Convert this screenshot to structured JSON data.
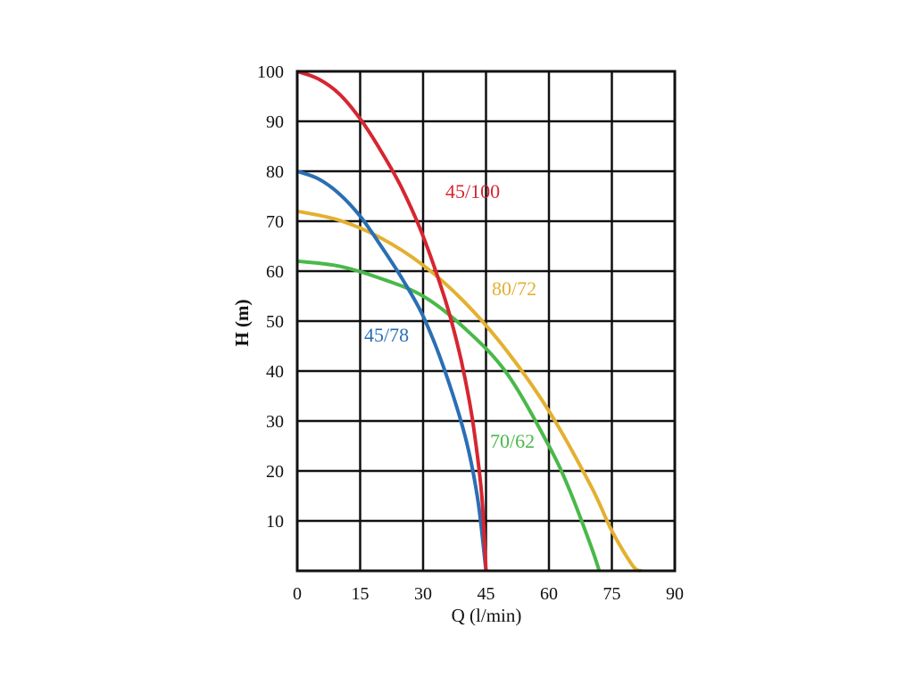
{
  "chart_data": {
    "type": "line",
    "xlabel": "Q (l/min)",
    "ylabel": "H (m)",
    "xlim": [
      0,
      90
    ],
    "ylim": [
      0,
      100
    ],
    "x_ticks": [
      "0",
      "15",
      "30",
      "45",
      "60",
      "75",
      "90"
    ],
    "y_ticks": [
      "10",
      "20",
      "30",
      "40",
      "50",
      "60",
      "70",
      "80",
      "90",
      "100"
    ],
    "grid": true,
    "series": [
      {
        "name": "45/100",
        "color": "#d62630",
        "x": [
          0,
          5,
          10,
          15,
          20,
          25,
          30,
          35,
          38,
          40,
          42,
          44,
          45
        ],
        "y": [
          100,
          98.5,
          95.5,
          90.5,
          84,
          76.5,
          67,
          55,
          46,
          38.5,
          29,
          15,
          0
        ]
      },
      {
        "name": "45/78",
        "color": "#2a6fb4",
        "x": [
          0,
          5,
          10,
          15,
          20,
          25,
          30,
          35,
          40,
          43,
          45
        ],
        "y": [
          80,
          78.5,
          75.5,
          71,
          65,
          58.5,
          51,
          40.5,
          27,
          14.5,
          0
        ]
      },
      {
        "name": "80/72",
        "color": "#e3b030",
        "x": [
          0,
          10,
          20,
          30,
          40,
          50,
          60,
          70,
          75,
          80,
          82
        ],
        "y": [
          72,
          70.2,
          66.6,
          61.2,
          53.7,
          44,
          32,
          17,
          8,
          1,
          0
        ]
      },
      {
        "name": "70/62",
        "color": "#4ab84a",
        "x": [
          0,
          10,
          20,
          30,
          40,
          50,
          60,
          65,
          70,
          72
        ],
        "y": [
          62,
          61,
          58.5,
          55,
          48.5,
          39.5,
          25,
          16,
          5,
          0
        ]
      }
    ]
  },
  "labels": {
    "s0": "45/100",
    "s1": "45/78",
    "s2": "80/72",
    "s3": "70/62"
  }
}
